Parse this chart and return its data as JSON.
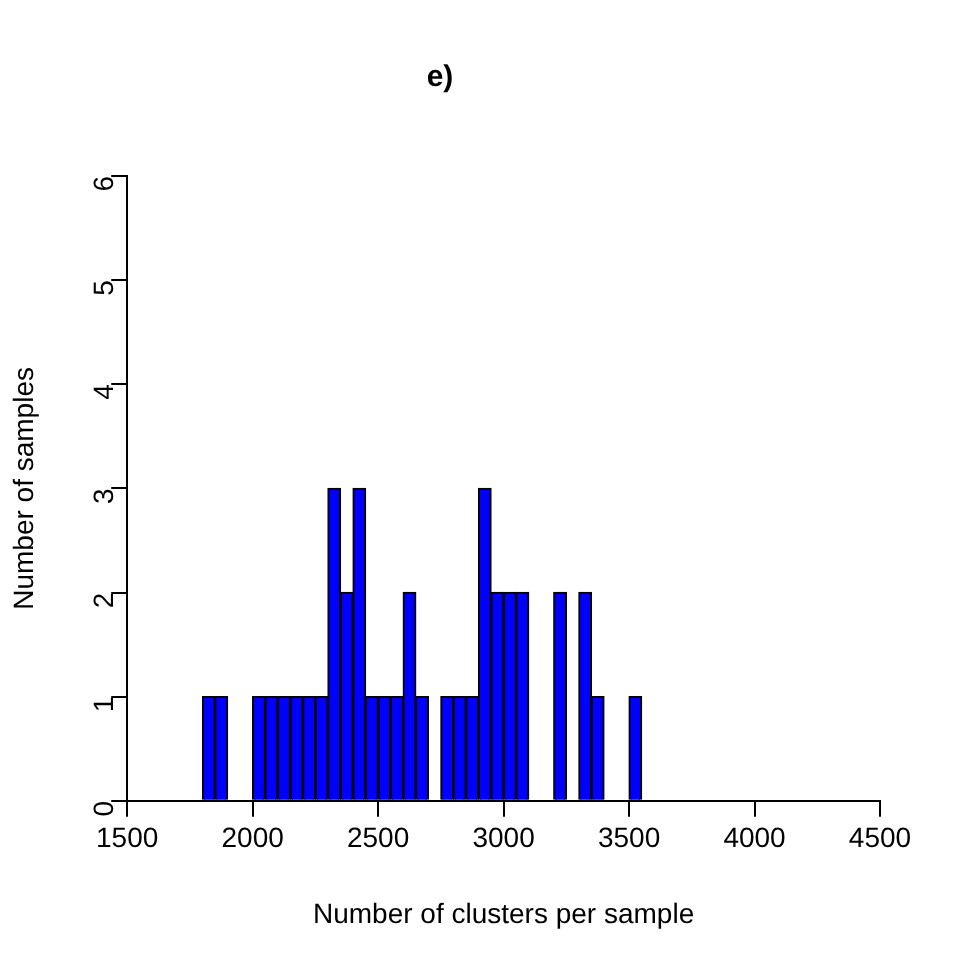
{
  "chart_data": {
    "type": "histogram",
    "title": "e)",
    "xlabel": "Number of clusters per sample",
    "ylabel": "Number of samples",
    "bins": [
      1800,
      1850,
      1900,
      1950,
      2000,
      2050,
      2100,
      2150,
      2200,
      2250,
      2300,
      2350,
      2400,
      2450,
      2500,
      2550,
      2600,
      2650,
      2700,
      2750,
      2800,
      2850,
      2900,
      2950,
      3000,
      3050,
      3100,
      3150,
      3200,
      3250,
      3300,
      3350,
      3400,
      3450,
      3500,
      3550
    ],
    "values": [
      1,
      1,
      0,
      0,
      1,
      1,
      1,
      1,
      1,
      1,
      3,
      2,
      3,
      1,
      1,
      1,
      2,
      1,
      0,
      1,
      1,
      1,
      3,
      2,
      2,
      2,
      0,
      0,
      2,
      0,
      2,
      1,
      0,
      0,
      1
    ],
    "color": "#0000ff",
    "xlim": [
      1500,
      4500
    ],
    "ylim": [
      0,
      6
    ],
    "xticks": [
      1500,
      2000,
      2500,
      3000,
      3500,
      4000,
      4500
    ],
    "yticks": [
      0,
      1,
      2,
      3,
      4,
      5,
      6
    ],
    "grid": false,
    "legend": false
  }
}
